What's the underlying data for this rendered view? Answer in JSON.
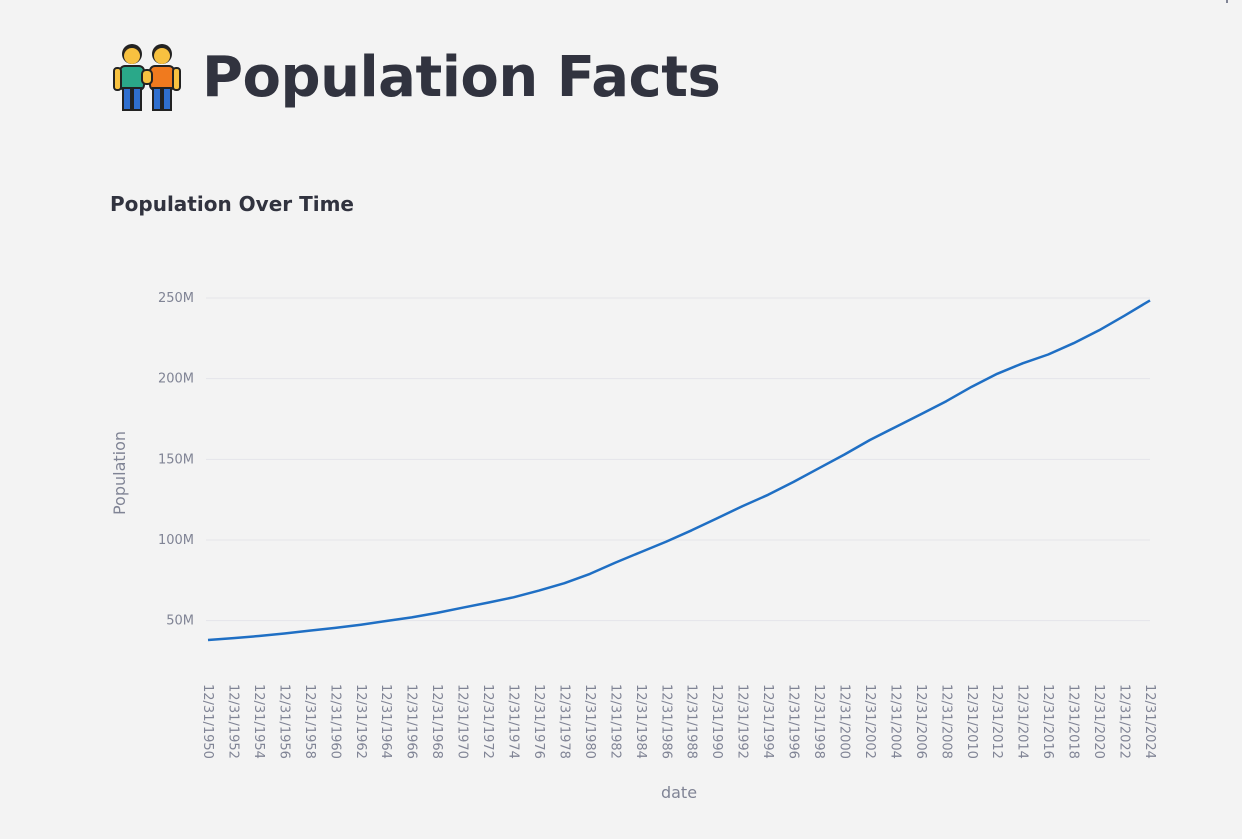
{
  "page": {
    "title": "Population Facts",
    "icon": "people-holding-hands-icon"
  },
  "colors": {
    "background": "#f3f3f3",
    "line": "#1f6fc4",
    "grid": "#e4e5ea",
    "text": "#31333f",
    "muted": "#808495"
  },
  "chart_data": {
    "type": "line",
    "title": "Population Over Time",
    "xlabel": "date",
    "ylabel": "Population",
    "ylim": [
      38000000,
      250000000
    ],
    "y_ticks": [
      50000000,
      100000000,
      150000000,
      200000000,
      250000000
    ],
    "y_tick_labels": [
      "50M",
      "100M",
      "150M",
      "200M",
      "250M"
    ],
    "x_tick_labels": [
      "12/31/1950",
      "12/31/1952",
      "12/31/1954",
      "12/31/1956",
      "12/31/1958",
      "12/31/1960",
      "12/31/1962",
      "12/31/1964",
      "12/31/1966",
      "12/31/1968",
      "12/31/1970",
      "12/31/1972",
      "12/31/1974",
      "12/31/1976",
      "12/31/1978",
      "12/31/1980",
      "12/31/1982",
      "12/31/1984",
      "12/31/1986",
      "12/31/1988",
      "12/31/1990",
      "12/31/1992",
      "12/31/1994",
      "12/31/1996",
      "12/31/1998",
      "12/31/2000",
      "12/31/2002",
      "12/31/2004",
      "12/31/2006",
      "12/31/2008",
      "12/31/2010",
      "12/31/2012",
      "12/31/2014",
      "12/31/2016",
      "12/31/2018",
      "12/31/2020",
      "12/31/2022",
      "12/31/2024"
    ],
    "grid": true,
    "legend": "none",
    "series": [
      {
        "x": [
          1950,
          1952,
          1954,
          1956,
          1958,
          1960,
          1962,
          1964,
          1966,
          1968,
          1970,
          1972,
          1974,
          1976,
          1978,
          1980,
          1982,
          1984,
          1986,
          1988,
          1990,
          1992,
          1994,
          1996,
          1998,
          2000,
          2002,
          2004,
          2006,
          2008,
          2010,
          2012,
          2014,
          2016,
          2018,
          2020,
          2022,
          2024
        ],
        "values": [
          38000000,
          39200000,
          40500000,
          42000000,
          43800000,
          45500000,
          47500000,
          49800000,
          52000000,
          54800000,
          58000000,
          61200000,
          64500000,
          68600000,
          73200000,
          79000000,
          86000000,
          92500000,
          99000000,
          106000000,
          113500000,
          121000000,
          128000000,
          136000000,
          144500000,
          153000000,
          162000000,
          170000000,
          178000000,
          186000000,
          195000000,
          203000000,
          209500000,
          215000000,
          222000000,
          230000000,
          239000000,
          248500000
        ]
      }
    ]
  }
}
